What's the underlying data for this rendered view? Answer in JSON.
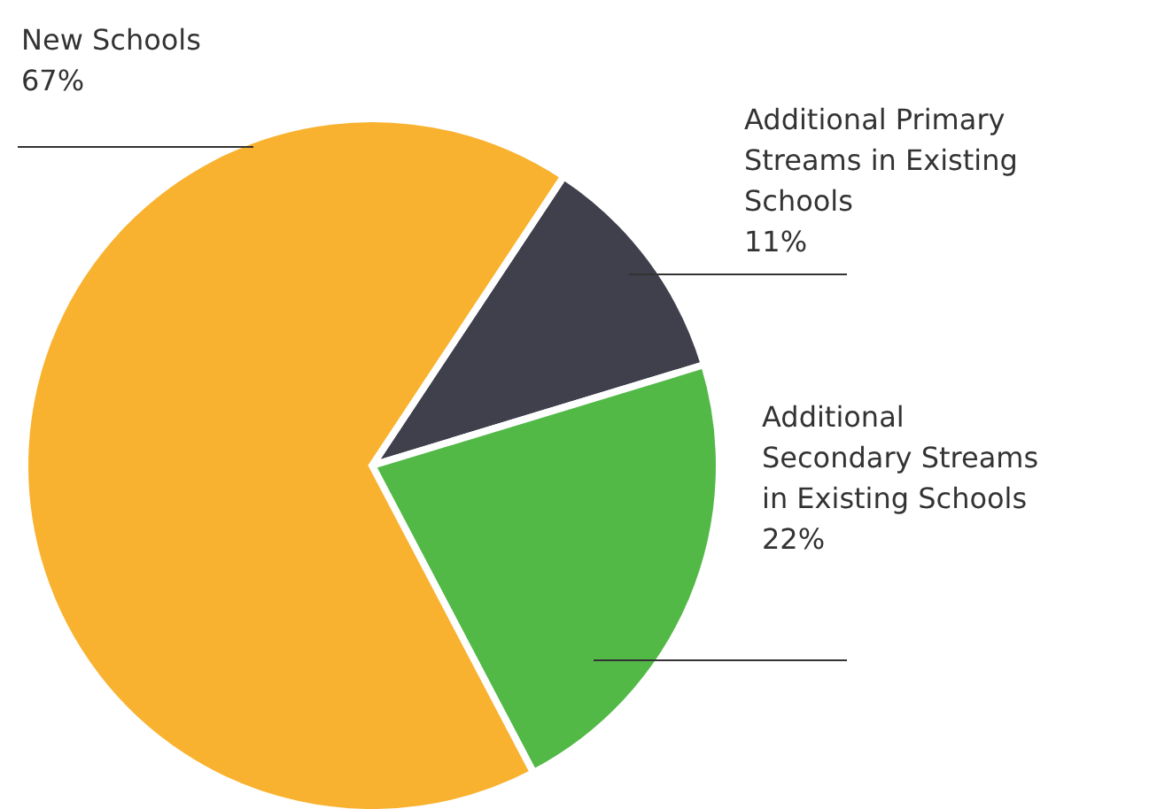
{
  "chart_data": {
    "type": "pie",
    "categories": [
      "Additional Primary Streams in Existing Schools",
      "Additional Secondary Streams in Existing Schools",
      "New Schools"
    ],
    "values": [
      11,
      22,
      67
    ],
    "colors": [
      "#3f404c",
      "#52b947",
      "#f9b22f"
    ],
    "value_labels": [
      "11%",
      "22%",
      "67%"
    ]
  }
}
